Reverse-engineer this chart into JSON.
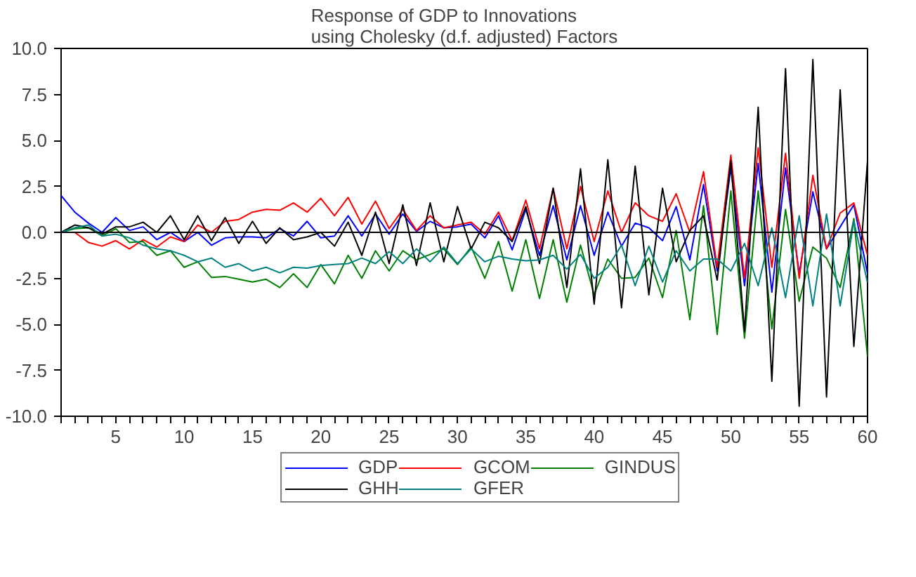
{
  "chart_data": {
    "type": "line",
    "title": "Response of GDP to Innovations\nusing Cholesky (d.f. adjusted) Factors",
    "x": [
      1,
      2,
      3,
      4,
      5,
      6,
      7,
      8,
      9,
      10,
      11,
      12,
      13,
      14,
      15,
      16,
      17,
      18,
      19,
      20,
      21,
      22,
      23,
      24,
      25,
      26,
      27,
      28,
      29,
      30,
      31,
      32,
      33,
      34,
      35,
      36,
      37,
      38,
      39,
      40,
      41,
      42,
      43,
      44,
      45,
      46,
      47,
      48,
      49,
      50,
      51,
      52,
      53,
      54,
      55,
      56,
      57,
      58,
      59,
      60
    ],
    "series": [
      {
        "name": "GDP",
        "color": "#0000ff",
        "values": [
          2.0,
          1.1,
          0.5,
          0,
          0.8,
          0.1,
          0.3,
          -0.4,
          0,
          -0.5,
          0,
          -0.7,
          -0.3,
          -0.25,
          -0.25,
          -0.3,
          0.2,
          -0.2,
          0.6,
          -0.3,
          -0.2,
          0.9,
          -0.2,
          1.0,
          -0.1,
          1.0,
          0.05,
          0.6,
          0.25,
          0.3,
          0.45,
          -0.3,
          0.9,
          -0.95,
          1.25,
          -1.25,
          1.45,
          -1.5,
          1.45,
          -1.25,
          1.1,
          -0.75,
          0.5,
          0.25,
          -0.45,
          1.4,
          -1.5,
          2.6,
          -2.1,
          3.5,
          -2.9,
          3.75,
          -3.25,
          3.5,
          -2.25,
          2.2,
          -0.9,
          0.3,
          1.5,
          -2.25
        ]
      },
      {
        "name": "GCOM",
        "color": "#ff0000",
        "values": [
          0,
          0,
          -0.55,
          -0.75,
          -0.45,
          -0.9,
          -0.4,
          -0.8,
          -0.25,
          -0.5,
          0.4,
          0,
          0.6,
          0.7,
          1.1,
          1.25,
          1.2,
          1.6,
          1.1,
          1.85,
          0.9,
          1.9,
          0.45,
          1.7,
          0.2,
          1.25,
          0.1,
          0.9,
          0.25,
          0.4,
          0.55,
          -0.1,
          1.1,
          -0.45,
          1.75,
          -0.9,
          2.4,
          -0.9,
          2.5,
          -0.5,
          2.25,
          0,
          1.6,
          0.9,
          0.6,
          2.1,
          0,
          3.3,
          -1.9,
          4.2,
          -2.5,
          4.6,
          -1.9,
          4.3,
          -2.5,
          3.1,
          -0.9,
          1.05,
          1.6,
          -1.25
        ]
      },
      {
        "name": "GINDUS",
        "color": "#008000",
        "values": [
          0,
          0.2,
          0.25,
          -0.2,
          0.2,
          -0.55,
          -0.5,
          -1.25,
          -1.0,
          -1.9,
          -1.6,
          -2.45,
          -2.4,
          -2.55,
          -2.7,
          -2.55,
          -3.0,
          -2.25,
          -3.0,
          -1.75,
          -2.8,
          -1.25,
          -2.5,
          -1.0,
          -2.1,
          -1.0,
          -1.5,
          -1.2,
          -0.9,
          -1.75,
          -0.8,
          -2.5,
          -0.5,
          -3.2,
          -0.4,
          -3.6,
          -0.4,
          -3.8,
          -0.7,
          -3.4,
          -1.45,
          -2.5,
          -2.45,
          -1.4,
          -3.55,
          0.1,
          -4.75,
          1.45,
          -5.55,
          2.25,
          -5.75,
          2.25,
          -5.25,
          1.25,
          -3.75,
          -0.8,
          -1.4,
          -3.0,
          0.75,
          -6.75
        ]
      },
      {
        "name": "GHH",
        "color": "#000000",
        "values": [
          0,
          0.4,
          0.25,
          -0.1,
          0.3,
          0.3,
          0.55,
          0,
          0.9,
          -0.4,
          0.9,
          -0.45,
          0.8,
          -0.6,
          0.6,
          -0.6,
          0.25,
          -0.4,
          -0.25,
          0,
          -0.75,
          0.55,
          -1.25,
          1.1,
          -1.7,
          1.5,
          -1.8,
          1.6,
          -1.6,
          1.4,
          -0.9,
          0.55,
          0.25,
          -0.5,
          1.4,
          -1.7,
          2.4,
          -3.0,
          3.45,
          -3.9,
          3.95,
          -4.1,
          3.6,
          -3.4,
          2.4,
          -1.6,
          0.1,
          0.9,
          -2.6,
          3.9,
          -5.4,
          6.8,
          -8.1,
          8.9,
          -9.45,
          9.4,
          -8.95,
          7.75,
          -6.2,
          3.9
        ]
      },
      {
        "name": "GFER",
        "color": "#008080",
        "values": [
          0,
          0.25,
          0.4,
          -0.2,
          -0.1,
          -0.3,
          -0.7,
          -0.9,
          -1.0,
          -1.25,
          -1.6,
          -1.4,
          -1.9,
          -1.7,
          -2.1,
          -1.9,
          -2.2,
          -1.9,
          -1.95,
          -1.8,
          -1.75,
          -1.7,
          -1.4,
          -1.7,
          -1.05,
          -1.7,
          -0.9,
          -1.6,
          -0.8,
          -1.7,
          -0.9,
          -1.6,
          -1.3,
          -1.45,
          -1.55,
          -1.5,
          -1.25,
          -2.0,
          -1.2,
          -2.5,
          -1.9,
          -0.7,
          -2.9,
          -0.75,
          -2.7,
          -1.0,
          -2.1,
          -1.45,
          -1.45,
          -2.1,
          -0.6,
          -2.9,
          0.25,
          -3.55,
          0.9,
          -4.0,
          1.0,
          -4.0,
          0.6,
          -2.75
        ]
      }
    ],
    "xlim": [
      1,
      60
    ],
    "xticks": [
      {
        "value": 1,
        "label": null
      },
      {
        "value": 2,
        "label": null
      },
      {
        "value": 3,
        "label": null
      },
      {
        "value": 4,
        "label": null
      },
      5,
      {
        "value": 6,
        "label": null
      },
      {
        "value": 7,
        "label": null
      },
      {
        "value": 8,
        "label": null
      },
      {
        "value": 9,
        "label": null
      },
      10,
      {
        "value": 11,
        "label": null
      },
      {
        "value": 12,
        "label": null
      },
      {
        "value": 13,
        "label": null
      },
      {
        "value": 14,
        "label": null
      },
      15,
      {
        "value": 16,
        "label": null
      },
      {
        "value": 17,
        "label": null
      },
      {
        "value": 18,
        "label": null
      },
      {
        "value": 19,
        "label": null
      },
      20,
      {
        "value": 21,
        "label": null
      },
      {
        "value": 22,
        "label": null
      },
      {
        "value": 23,
        "label": null
      },
      {
        "value": 24,
        "label": null
      },
      25,
      {
        "value": 26,
        "label": null
      },
      {
        "value": 27,
        "label": null
      },
      {
        "value": 28,
        "label": null
      },
      {
        "value": 29,
        "label": null
      },
      30,
      {
        "value": 31,
        "label": null
      },
      {
        "value": 32,
        "label": null
      },
      {
        "value": 33,
        "label": null
      },
      {
        "value": 34,
        "label": null
      },
      35,
      {
        "value": 36,
        "label": null
      },
      {
        "value": 37,
        "label": null
      },
      {
        "value": 38,
        "label": null
      },
      {
        "value": 39,
        "label": null
      },
      40,
      {
        "value": 41,
        "label": null
      },
      {
        "value": 42,
        "label": null
      },
      {
        "value": 43,
        "label": null
      },
      {
        "value": 44,
        "label": null
      },
      45,
      {
        "value": 46,
        "label": null
      },
      {
        "value": 47,
        "label": null
      },
      {
        "value": 48,
        "label": null
      },
      {
        "value": 49,
        "label": null
      },
      50,
      {
        "value": 51,
        "label": null
      },
      {
        "value": 52,
        "label": null
      },
      {
        "value": 53,
        "label": null
      },
      {
        "value": 54,
        "label": null
      },
      55,
      {
        "value": 56,
        "label": null
      },
      {
        "value": 57,
        "label": null
      },
      {
        "value": 58,
        "label": null
      },
      {
        "value": 59,
        "label": null
      },
      60
    ],
    "ylim": [
      -10,
      10
    ],
    "yticks": [
      {
        "value": -10,
        "label": "-10.0"
      },
      {
        "value": -7.5,
        "label": "-7.5"
      },
      {
        "value": -5,
        "label": "-5.0"
      },
      {
        "value": -2.5,
        "label": "-2.5"
      },
      {
        "value": 0,
        "label": "0.0"
      },
      {
        "value": 2.5,
        "label": "2.5"
      },
      {
        "value": 5,
        "label": "5.0"
      },
      {
        "value": 7.5,
        "label": "7.5"
      },
      {
        "value": 10,
        "label": "10.0"
      }
    ],
    "ref_lines": [
      {
        "axis": "y",
        "value": 0,
        "color": "#000000"
      }
    ],
    "grid": false,
    "legend": "bottom",
    "marker": "none",
    "line_style": "solid"
  }
}
